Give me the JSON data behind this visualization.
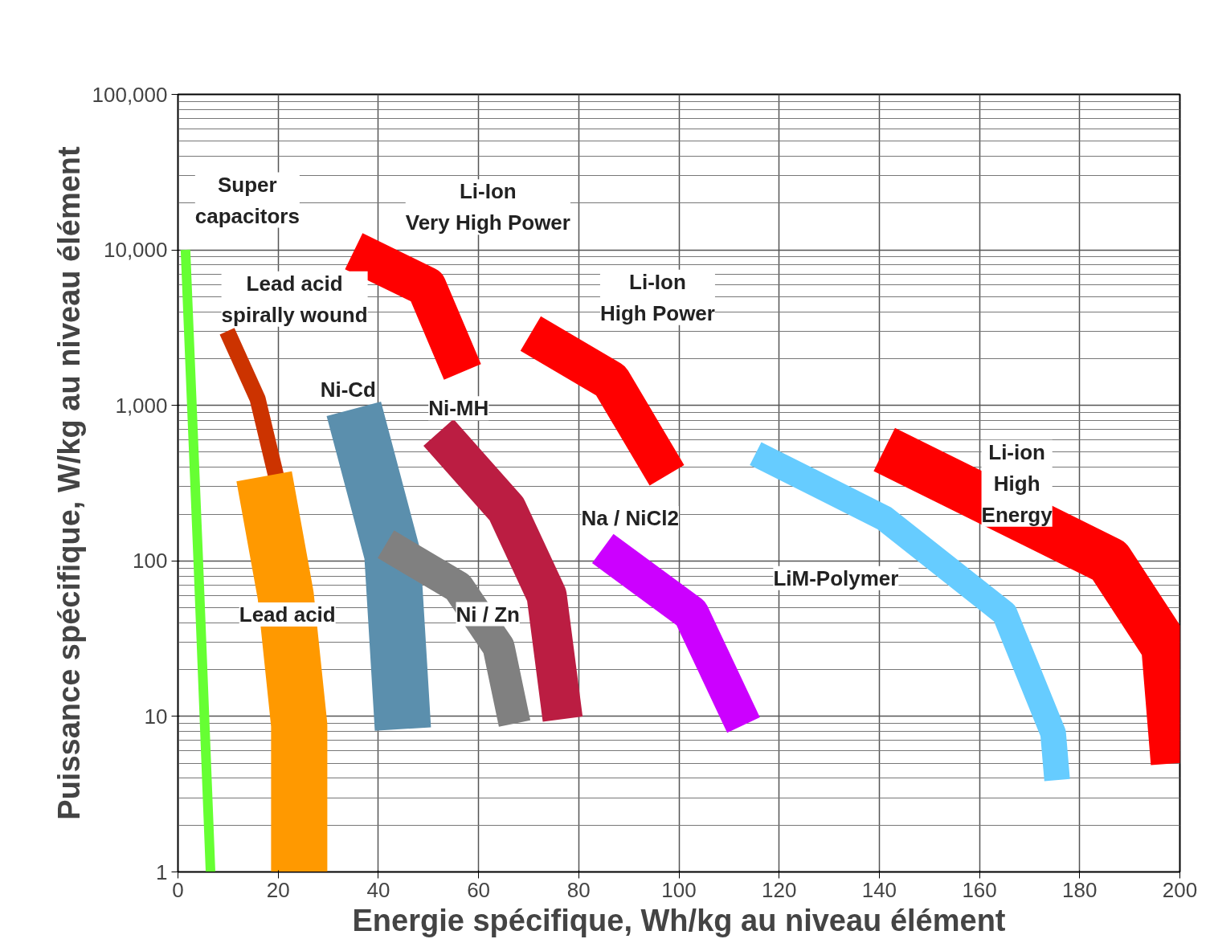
{
  "chart_data": {
    "type": "line",
    "xlabel": "Energie spécifique, Wh/kg au niveau élément",
    "ylabel": "Puissance spécifique, W/kg au niveau élément",
    "log": "y",
    "grid": true,
    "marker": "none",
    "line_style": "solid",
    "xlim": [
      0,
      200
    ],
    "xticks": [
      0,
      20,
      40,
      60,
      80,
      100,
      120,
      140,
      160,
      180,
      200
    ],
    "ylim": [
      1,
      100000
    ],
    "yticks": [
      1,
      10,
      100,
      {
        "value": 1000,
        "label": "1,000"
      },
      {
        "value": 10000,
        "label": "10,000"
      },
      {
        "value": 100000,
        "label": "100,000"
      }
    ],
    "series": [
      {
        "name": "Super\ncapacitors",
        "color": "#66ff33",
        "x": [
          1.5,
          4,
          6.5
        ],
        "values": [
          10000,
          110,
          1
        ]
      },
      {
        "name": "Lead acid\nspirally wound",
        "color": "#cc3300",
        "x": [
          9.8,
          15.9,
          19.6,
          20.7
        ],
        "values": [
          3000,
          1100,
          350,
          100
        ]
      },
      {
        "name": "Lead acid",
        "color": "#ff9900",
        "x": [
          17.2,
          21.5,
          24.2,
          24.2
        ],
        "values": [
          350,
          60,
          8.8,
          1
        ]
      },
      {
        "name": "Ni-Cd",
        "color": "#5b8fad",
        "x": [
          35.1,
          42.8,
          44.9
        ],
        "values": [
          950,
          110,
          8.3
        ]
      },
      {
        "name": "Ni / Zn",
        "color": "#808080",
        "x": [
          41.5,
          55.9,
          64,
          67.2
        ],
        "values": [
          128,
          68,
          28,
          9
        ]
      },
      {
        "name": "Ni-MH",
        "color": "#bb1d42",
        "x": [
          52,
          65.6,
          73.6,
          76.8
        ],
        "values": [
          670,
          215,
          60,
          9.6
        ]
      },
      {
        "name": "Li-Ion\nVery High Power",
        "color": "#ff0000",
        "x": [
          35.1,
          49.6,
          56.8
        ],
        "values": [
          9800,
          5800,
          1640
        ]
      },
      {
        "name": "Li-Ion\nHigh Power",
        "color": "#ff0000",
        "x": [
          70.4,
          86.4,
          97.6
        ],
        "values": [
          2900,
          1440,
          355
        ]
      },
      {
        "name": "Na / NiCl2",
        "color": "#cc00ff",
        "x": [
          84.8,
          102.4,
          112.9
        ],
        "values": [
          120,
          46,
          8.8
        ]
      },
      {
        "name": "LiM-Polymer",
        "color": "#66ccff",
        "x": [
          115.3,
          141,
          165,
          174.7,
          175.5
        ],
        "values": [
          490,
          188,
          46,
          7.8,
          3.9
        ]
      },
      {
        "name": "Li-ion\nHigh\nEnergy",
        "color": "#ff0000",
        "x": [
          141,
          185.9,
          197.1,
          199
        ],
        "values": [
          520,
          100,
          28,
          5
        ]
      }
    ]
  }
}
